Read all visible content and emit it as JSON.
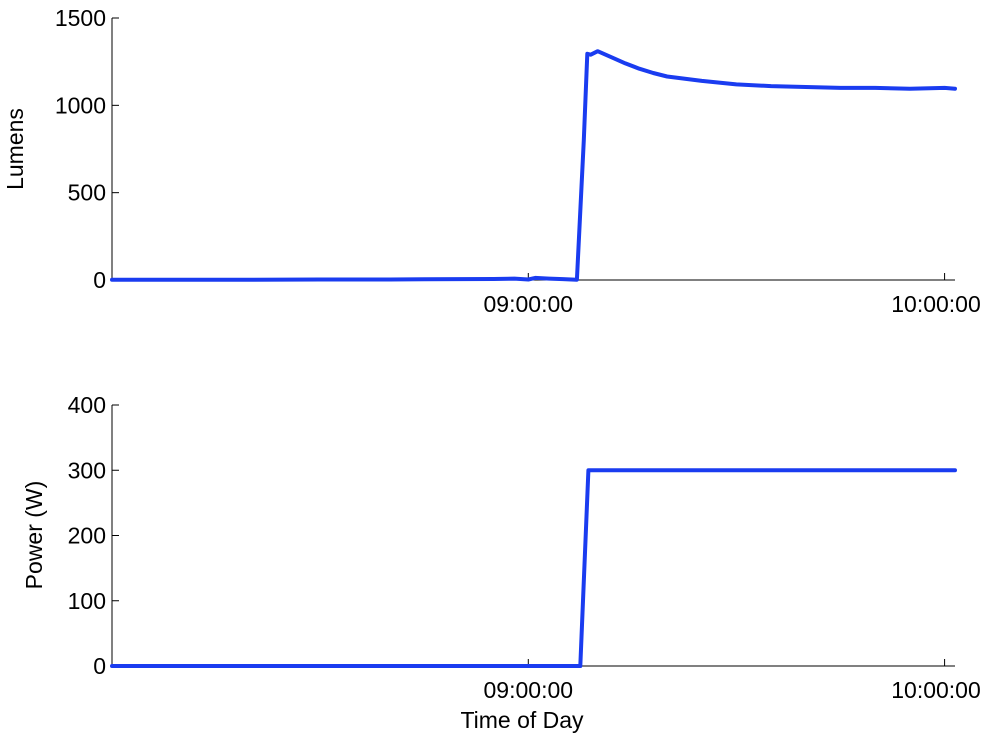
{
  "chart_data": [
    {
      "type": "line",
      "ylabel": "Lumens",
      "xlabel": "",
      "xlim": [
        "08:00:00",
        "10:01:30"
      ],
      "ylim": [
        0,
        1500
      ],
      "x_ticks": [
        "09:00:00",
        "10:00:00"
      ],
      "y_ticks": [
        0,
        500,
        1000,
        1500
      ],
      "grid": false,
      "color": "#1a3cf0",
      "series": [
        {
          "x": [
            "08:00:00",
            "08:10:00",
            "08:20:00",
            "08:30:00",
            "08:40:00",
            "08:45:00",
            "08:50:00",
            "08:55:00",
            "08:58:00",
            "09:00:00",
            "09:01:00",
            "09:03:00",
            "09:05:00",
            "09:07:00",
            "09:08:00",
            "09:08:30",
            "09:09:00",
            "09:10:00",
            "09:12:00",
            "09:14:00",
            "09:16:00",
            "09:18:00",
            "09:20:00",
            "09:25:00",
            "09:30:00",
            "09:35:00",
            "09:40:00",
            "09:45:00",
            "09:50:00",
            "09:55:00",
            "10:00:00",
            "10:01:30"
          ],
          "values": [
            2,
            2,
            2,
            3,
            3,
            4,
            5,
            6,
            8,
            3,
            12,
            8,
            5,
            2,
            800,
            1295,
            1290,
            1310,
            1275,
            1240,
            1210,
            1185,
            1165,
            1140,
            1120,
            1110,
            1105,
            1100,
            1100,
            1095,
            1100,
            1095
          ]
        }
      ]
    },
    {
      "type": "line",
      "ylabel": "Power (W)",
      "xlabel": "Time of Day",
      "xlim": [
        "08:00:00",
        "10:01:30"
      ],
      "ylim": [
        0,
        400
      ],
      "x_ticks": [
        "09:00:00",
        "10:00:00"
      ],
      "y_ticks": [
        0,
        100,
        200,
        300,
        400
      ],
      "grid": false,
      "color": "#1a3cf0",
      "series": [
        {
          "x": [
            "08:00:00",
            "09:07:30",
            "09:08:40",
            "10:01:30"
          ],
          "values": [
            0,
            0,
            300,
            300
          ]
        }
      ]
    }
  ]
}
